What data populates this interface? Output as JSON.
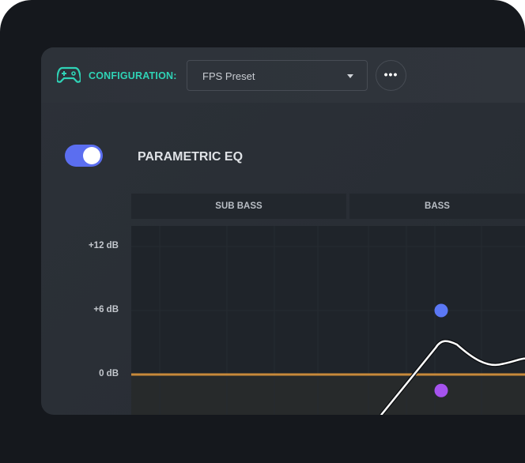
{
  "header": {
    "icon": "gamepad-icon",
    "config_label": "CONFIGURATION:",
    "preset_value": "FPS Preset",
    "more_label": "•••"
  },
  "eq": {
    "title": "PARAMETRIC EQ",
    "enabled": true,
    "accent": "#5b6ef0"
  },
  "bands": [
    {
      "label": "SUB BASS"
    },
    {
      "label": "BASS"
    }
  ],
  "chart_data": {
    "type": "line",
    "y_ticks": [
      "+12 dB",
      "+6 dB",
      "0 dB"
    ],
    "ylim": [
      -3.8,
      13.9
    ],
    "grid": true,
    "zero_line_color": "#c8893a",
    "points": [
      {
        "color": "#5b78f5",
        "gain_db": 6
      },
      {
        "color": "#a653ee",
        "gain_db": -1.5
      }
    ],
    "curve_db": [
      -3.8,
      3.1,
      1.0,
      1.5
    ]
  }
}
